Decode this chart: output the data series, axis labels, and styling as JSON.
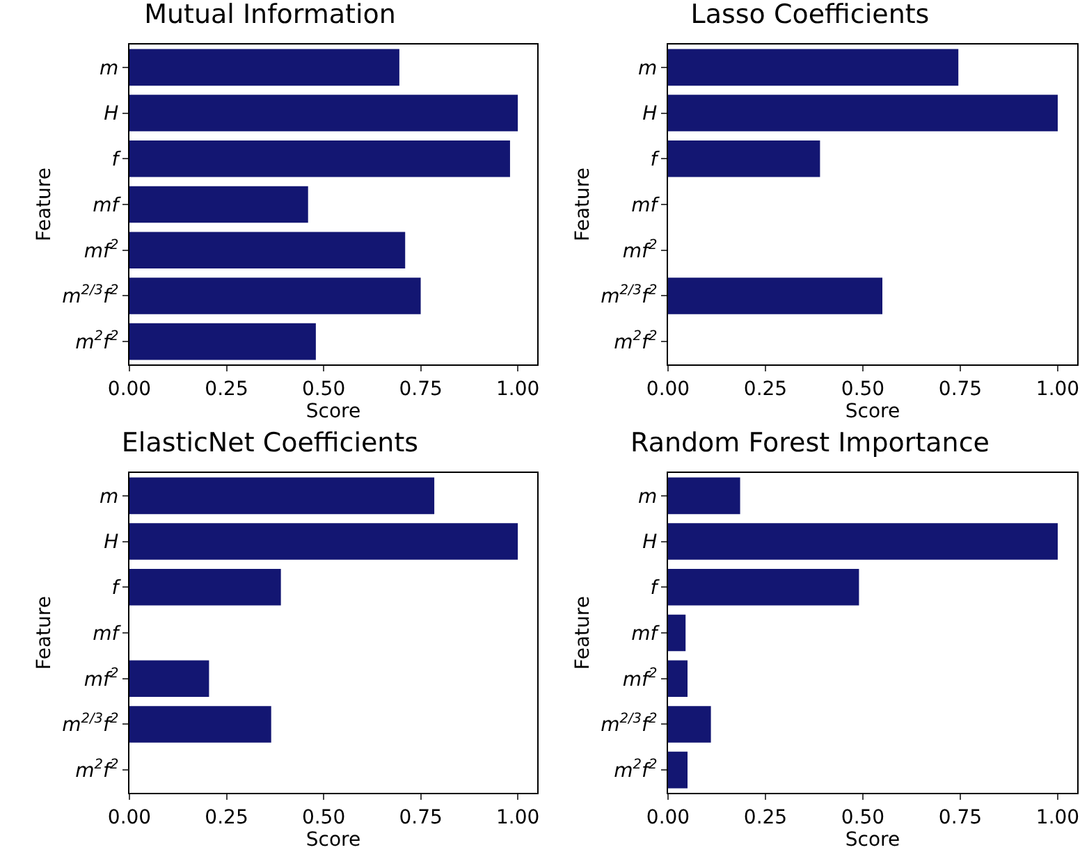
{
  "chart_data": [
    {
      "type": "bar",
      "orientation": "horizontal",
      "title": "Mutual Information",
      "xlabel": "Score",
      "ylabel": "Feature",
      "categories": [
        "m",
        "H",
        "f",
        "mf",
        "mf$^{2}$",
        "m$^{2/3}$f$^{2}$",
        "m$^{2}$f$^{2}$"
      ],
      "values": [
        0.695,
        1.0,
        0.98,
        0.46,
        0.71,
        0.75,
        0.48
      ],
      "color": "#131672",
      "xlim": [
        0,
        1.05
      ],
      "xticks": [
        {
          "value": 0,
          "label": "0.00"
        },
        {
          "value": 0.25,
          "label": "0.25"
        },
        {
          "value": 0.5,
          "label": "0.50"
        },
        {
          "value": 0.75,
          "label": "0.75"
        },
        {
          "value": 1,
          "label": "1.00"
        }
      ],
      "grid": false
    },
    {
      "type": "bar",
      "orientation": "horizontal",
      "title": "Lasso Coefficients",
      "xlabel": "Score",
      "ylabel": "Feature",
      "categories": [
        "m",
        "H",
        "f",
        "mf",
        "mf$^{2}$",
        "m$^{2/3}$f$^{2}$",
        "m$^{2}$f$^{2}$"
      ],
      "values": [
        0.745,
        1.0,
        0.39,
        0,
        0,
        0.55,
        0
      ],
      "color": "#131672",
      "xlim": [
        0,
        1.05
      ],
      "xticks": [
        {
          "value": 0,
          "label": "0.00"
        },
        {
          "value": 0.25,
          "label": "0.25"
        },
        {
          "value": 0.5,
          "label": "0.50"
        },
        {
          "value": 0.75,
          "label": "0.75"
        },
        {
          "value": 1,
          "label": "1.00"
        }
      ],
      "grid": false
    },
    {
      "type": "bar",
      "orientation": "horizontal",
      "title": "ElasticNet Coefficients",
      "xlabel": "Score",
      "ylabel": "Feature",
      "categories": [
        "m",
        "H",
        "f",
        "mf",
        "mf$^{2}$",
        "m$^{2/3}$f$^{2}$",
        "m$^{2}$f$^{2}$"
      ],
      "values": [
        0.785,
        1.0,
        0.39,
        0,
        0.205,
        0.365,
        0
      ],
      "color": "#131672",
      "xlim": [
        0,
        1.05
      ],
      "xticks": [
        {
          "value": 0,
          "label": "0.00"
        },
        {
          "value": 0.25,
          "label": "0.25"
        },
        {
          "value": 0.5,
          "label": "0.50"
        },
        {
          "value": 0.75,
          "label": "0.75"
        },
        {
          "value": 1,
          "label": "1.00"
        }
      ],
      "grid": false
    },
    {
      "type": "bar",
      "orientation": "horizontal",
      "title": "Random Forest Importance",
      "xlabel": "Score",
      "ylabel": "Feature",
      "categories": [
        "m",
        "H",
        "f",
        "mf",
        "mf$^{2}$",
        "m$^{2/3}$f$^{2}$",
        "m$^{2}$f$^{2}$"
      ],
      "values": [
        0.185,
        1.0,
        0.49,
        0.045,
        0.05,
        0.11,
        0.05
      ],
      "color": "#131672",
      "xlim": [
        0,
        1.05
      ],
      "xticks": [
        {
          "value": 0,
          "label": "0.00"
        },
        {
          "value": 0.25,
          "label": "0.25"
        },
        {
          "value": 0.5,
          "label": "0.50"
        },
        {
          "value": 0.75,
          "label": "0.75"
        },
        {
          "value": 1,
          "label": "1.00"
        }
      ],
      "grid": false
    }
  ]
}
